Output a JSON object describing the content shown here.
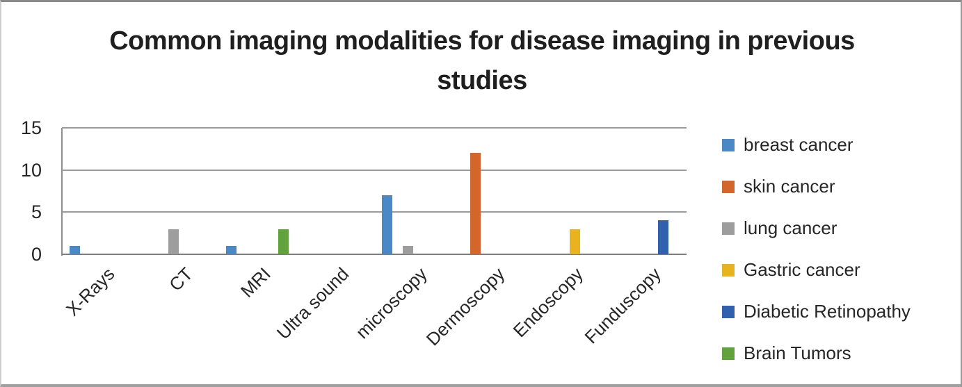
{
  "chart_data": {
    "type": "bar",
    "title": "Common imaging modalities for disease imaging in previous studies",
    "categories": [
      "X-Rays",
      "CT",
      "MRI",
      "Ultra sound",
      "microscopy",
      "Dermoscopy",
      "Endoscopy",
      "Funduscopy"
    ],
    "series": [
      {
        "name": "breast cancer",
        "color": "#4A89C6",
        "values": [
          1,
          0,
          1,
          0,
          7,
          0,
          0,
          0
        ]
      },
      {
        "name": "skin cancer",
        "color": "#D4662B",
        "values": [
          0,
          0,
          0,
          0,
          0,
          12,
          0,
          0
        ]
      },
      {
        "name": "lung cancer",
        "color": "#9D9D9D",
        "values": [
          0,
          3,
          0,
          0,
          1,
          0,
          0,
          0
        ]
      },
      {
        "name": "Gastric cancer",
        "color": "#E9B320",
        "values": [
          0,
          0,
          0,
          0,
          0,
          0,
          3,
          0
        ]
      },
      {
        "name": "Diabetic Retinopathy",
        "color": "#3160AE",
        "values": [
          0,
          0,
          0,
          0,
          0,
          0,
          0,
          4
        ]
      },
      {
        "name": "Brain Tumors",
        "color": "#61A23D",
        "values": [
          0,
          0,
          3,
          0,
          0,
          0,
          0,
          0
        ]
      }
    ],
    "xlabel": "",
    "ylabel": "",
    "ylim": [
      0,
      15
    ],
    "yticks": [
      0,
      5,
      10,
      15
    ],
    "grid": true,
    "legend_position": "right"
  }
}
